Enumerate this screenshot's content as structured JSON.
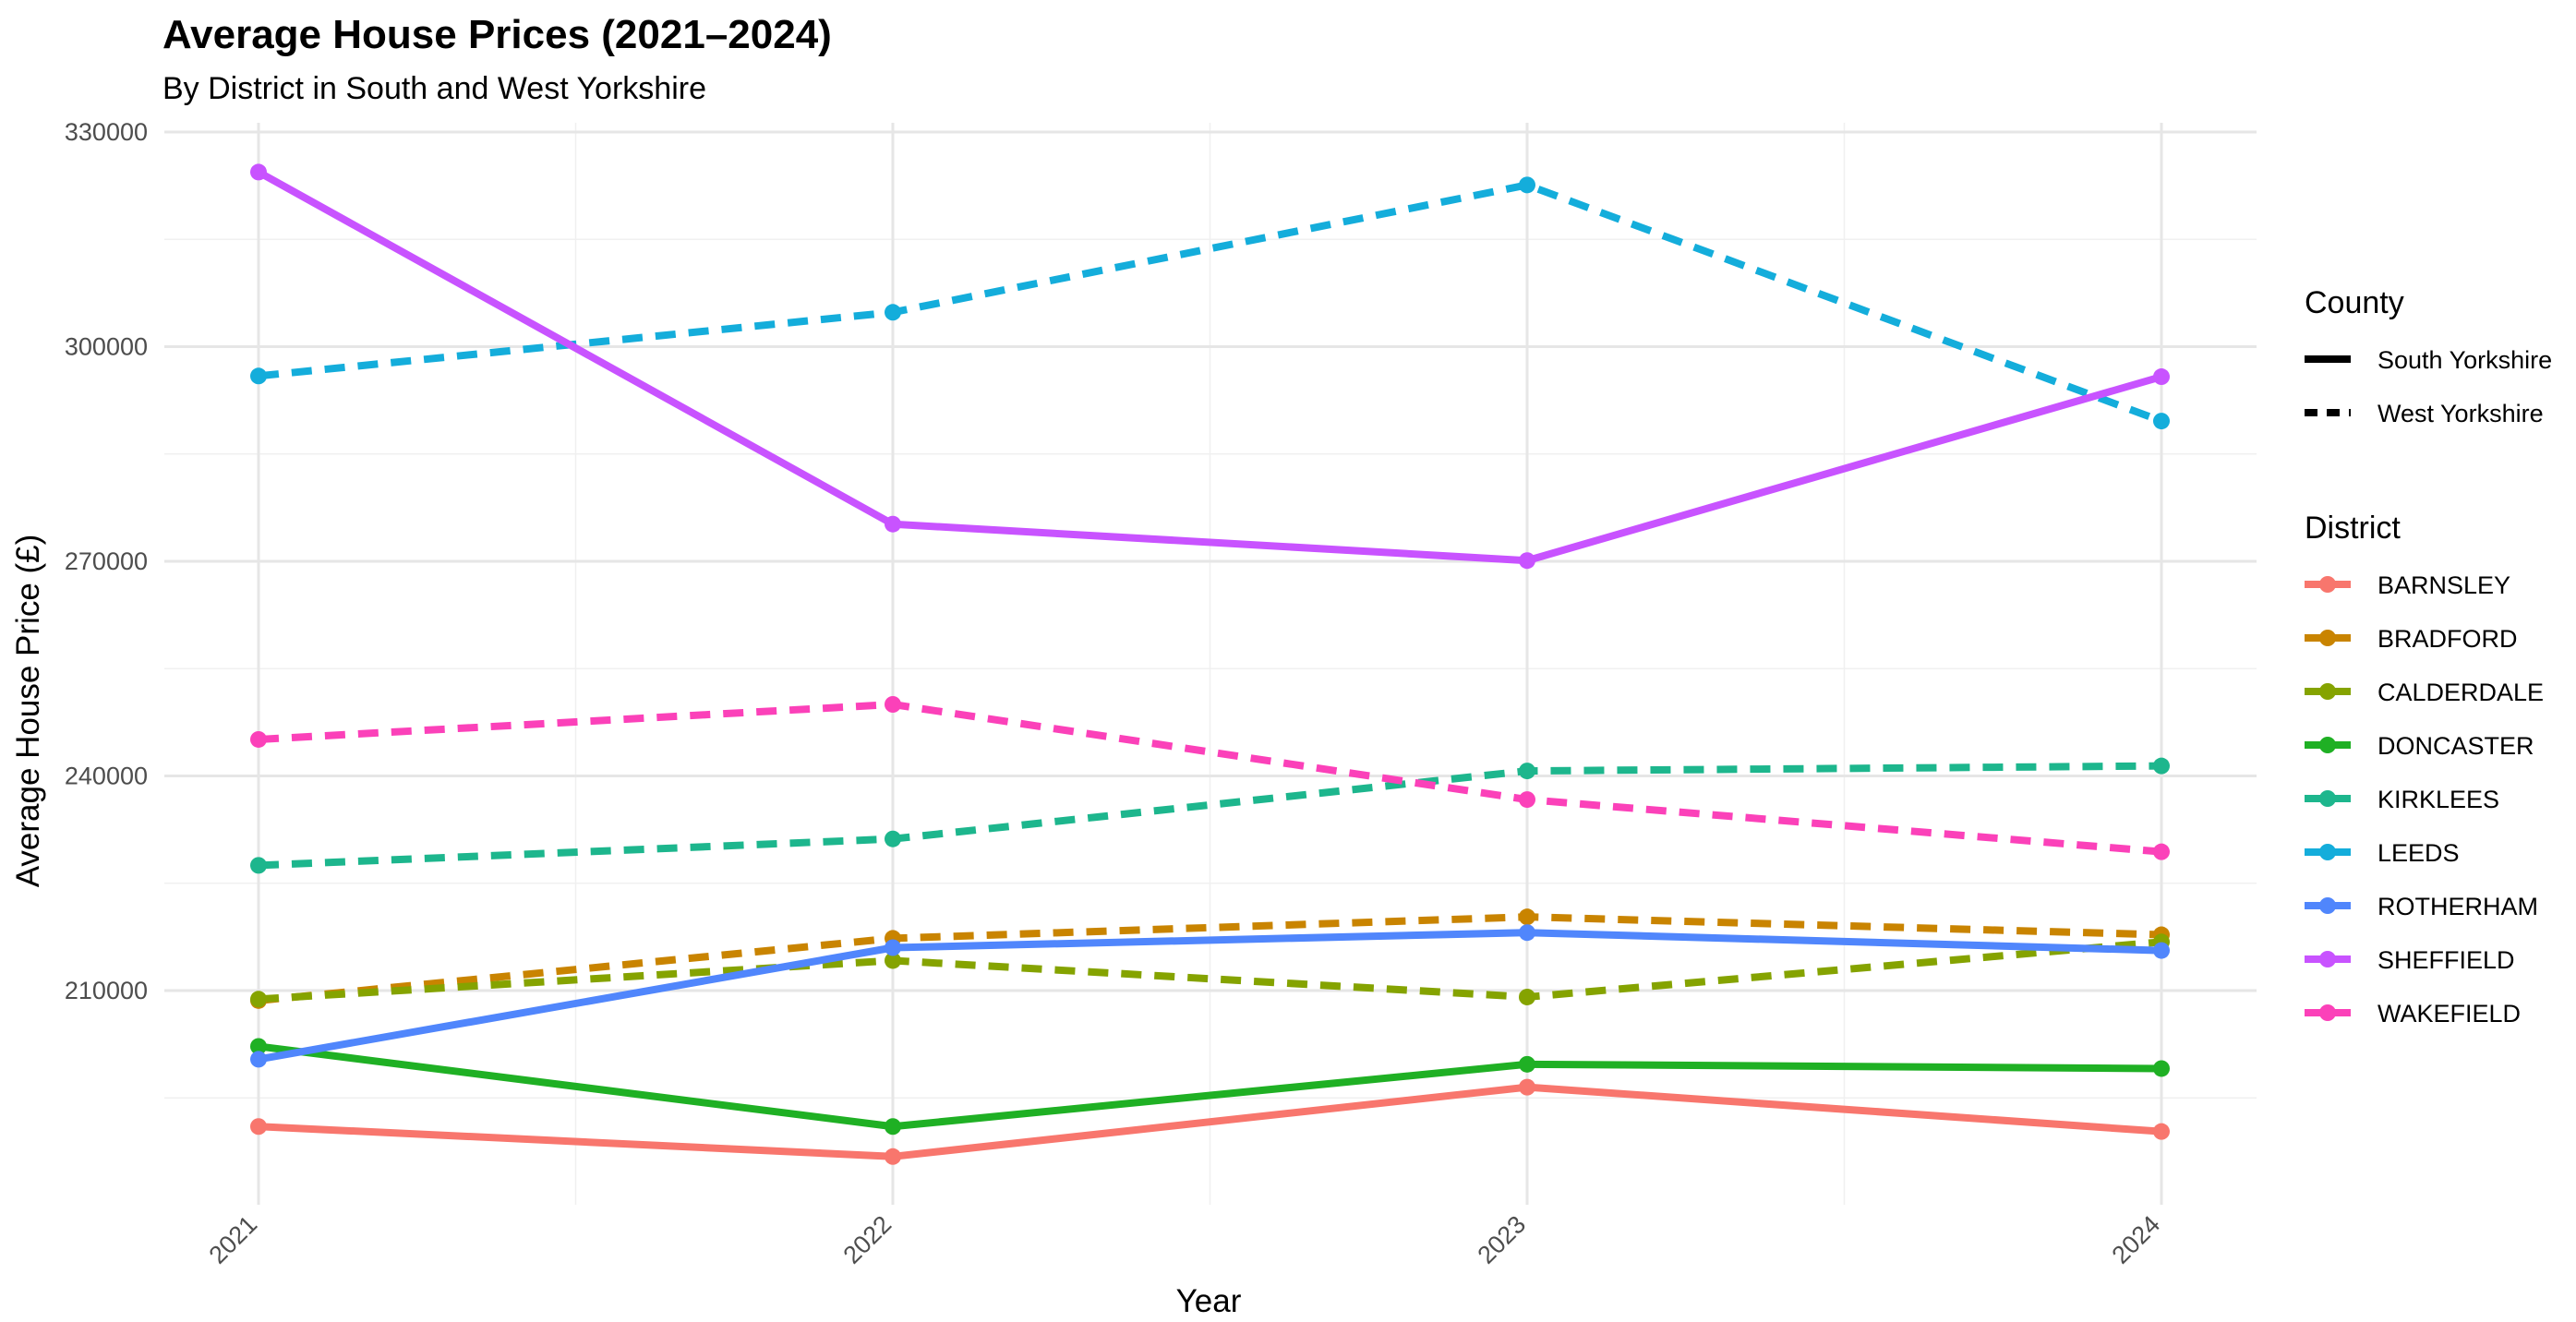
{
  "chart_data": {
    "type": "line",
    "title": "Average House Prices (2021–2024)",
    "subtitle": "By District in South and West Yorkshire",
    "xlabel": "Year",
    "ylabel": "Average House Price (£)",
    "x": [
      "2021",
      "2022",
      "2023",
      "2024"
    ],
    "ylim": [
      180000,
      330000
    ],
    "yticks": [
      210000,
      240000,
      270000,
      300000,
      330000
    ],
    "yticks_labels": [
      "210000",
      "240000",
      "270000",
      "300000",
      "330000"
    ],
    "grid": true,
    "legend_position": "right",
    "legends": {
      "county_title": "County",
      "county_items": [
        {
          "label": "South Yorkshire",
          "linetype": "solid"
        },
        {
          "label": "West Yorkshire",
          "linetype": "dashed"
        }
      ],
      "district_title": "District"
    },
    "series": [
      {
        "name": "BARNSLEY",
        "county": "South Yorkshire",
        "color": "#F8766D",
        "values": [
          191000,
          186800,
          196500,
          190300
        ]
      },
      {
        "name": "BRADFORD",
        "county": "West Yorkshire",
        "color": "#C98400",
        "values": [
          208600,
          217300,
          220300,
          217800
        ]
      },
      {
        "name": "CALDERDALE",
        "county": "West Yorkshire",
        "color": "#85A300",
        "values": [
          208800,
          214200,
          209100,
          216800
        ]
      },
      {
        "name": "DONCASTER",
        "county": "South Yorkshire",
        "color": "#1FB024",
        "values": [
          202200,
          191000,
          199700,
          199100
        ]
      },
      {
        "name": "KIRKLEES",
        "county": "West Yorkshire",
        "color": "#1DB68D",
        "values": [
          227500,
          231200,
          240700,
          241400
        ]
      },
      {
        "name": "LEEDS",
        "county": "West Yorkshire",
        "color": "#14ADDB",
        "values": [
          295900,
          304800,
          322600,
          289600
        ]
      },
      {
        "name": "ROTHERHAM",
        "county": "South Yorkshire",
        "color": "#5086FC",
        "values": [
          200400,
          216000,
          218100,
          215600
        ]
      },
      {
        "name": "SHEFFIELD",
        "county": "South Yorkshire",
        "color": "#C853FF",
        "values": [
          324400,
          275200,
          270100,
          295800
        ]
      },
      {
        "name": "WAKEFIELD",
        "county": "West Yorkshire",
        "color": "#FB41B9",
        "values": [
          245100,
          250000,
          236700,
          229400
        ]
      }
    ]
  }
}
